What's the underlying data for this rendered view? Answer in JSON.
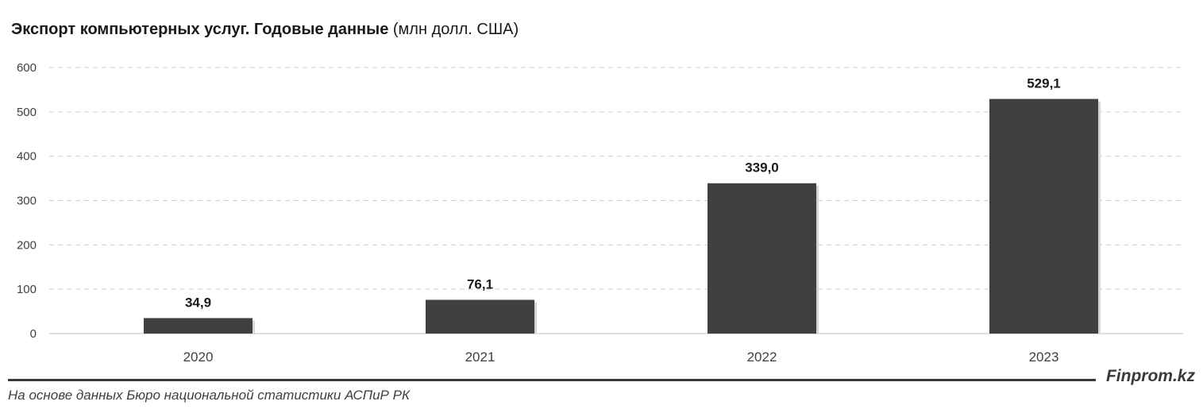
{
  "chart_data": {
    "type": "bar",
    "title": "Экспорт компьютерных услуг. Годовые данные",
    "unit": "(млн долл. США)",
    "categories": [
      "2020",
      "2021",
      "2022",
      "2023"
    ],
    "values": [
      34.9,
      76.1,
      339.0,
      529.1
    ],
    "data_labels": [
      "34,9",
      "76,1",
      "339,0",
      "529,1"
    ],
    "yticks": [
      "0",
      "100",
      "200",
      "300",
      "400",
      "500",
      "600"
    ],
    "ylim": [
      0,
      600
    ],
    "grid": true,
    "bar_color": "#404040"
  },
  "footer": {
    "brand": "Finprom.kz",
    "source": "На основе данных Бюро национальной статистики АСПиР РК"
  }
}
